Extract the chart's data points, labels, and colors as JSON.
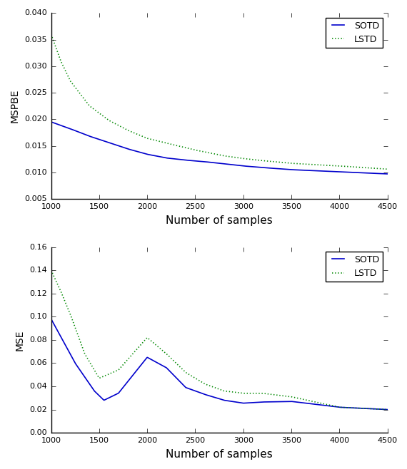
{
  "plot1_sotd_kx": [
    1000,
    1200,
    1400,
    1600,
    1800,
    2000,
    2200,
    2400,
    2600,
    2800,
    3000,
    3200,
    3500,
    4000,
    4500
  ],
  "plot1_sotd_ky": [
    0.0195,
    0.0182,
    0.0168,
    0.0156,
    0.0144,
    0.0134,
    0.0127,
    0.0123,
    0.012,
    0.0116,
    0.0112,
    0.0109,
    0.0105,
    0.0101,
    0.0097
  ],
  "plot1_lstd_kx": [
    1000,
    1100,
    1200,
    1400,
    1600,
    1800,
    2000,
    2200,
    2500,
    2800,
    3000,
    3200,
    3500,
    4000,
    4500
  ],
  "plot1_lstd_ky": [
    0.036,
    0.031,
    0.0272,
    0.0225,
    0.0198,
    0.0179,
    0.0164,
    0.0155,
    0.0142,
    0.0131,
    0.0126,
    0.0122,
    0.0117,
    0.0112,
    0.0106
  ],
  "plot2_sotd_kx": [
    1000,
    1250,
    1450,
    1550,
    1700,
    2000,
    2200,
    2400,
    2600,
    2800,
    3000,
    3200,
    3500,
    4000,
    4500
  ],
  "plot2_sotd_ky": [
    0.098,
    0.06,
    0.036,
    0.028,
    0.034,
    0.065,
    0.056,
    0.039,
    0.033,
    0.028,
    0.0255,
    0.0265,
    0.027,
    0.022,
    0.02
  ],
  "plot2_lstd_kx": [
    1000,
    1100,
    1200,
    1350,
    1500,
    1700,
    2000,
    2200,
    2400,
    2600,
    2800,
    3000,
    3200,
    3500,
    4000,
    4500
  ],
  "plot2_lstd_ky": [
    0.14,
    0.122,
    0.102,
    0.068,
    0.047,
    0.054,
    0.082,
    0.068,
    0.052,
    0.042,
    0.036,
    0.034,
    0.034,
    0.031,
    0.022,
    0.02
  ],
  "plot1_ylim": [
    0.005,
    0.04
  ],
  "plot1_yticks": [
    0.005,
    0.01,
    0.015,
    0.02,
    0.025,
    0.03,
    0.035,
    0.04
  ],
  "plot2_ylim": [
    0.0,
    0.16
  ],
  "plot2_yticks": [
    0.0,
    0.02,
    0.04,
    0.06,
    0.08,
    0.1,
    0.12,
    0.14,
    0.16
  ],
  "xlim": [
    1000,
    4500
  ],
  "xticks": [
    1000,
    1500,
    2000,
    2500,
    3000,
    3500,
    4000,
    4500
  ],
  "sotd_color": "#0000cc",
  "lstd_color": "#008800",
  "ylabel1": "MSPBE",
  "ylabel2": "MSE",
  "xlabel": "Number of samples",
  "legend_sotd": "SOTD",
  "legend_lstd": "LSTD",
  "figsize": [
    5.7,
    6.58
  ],
  "dpi": 100
}
